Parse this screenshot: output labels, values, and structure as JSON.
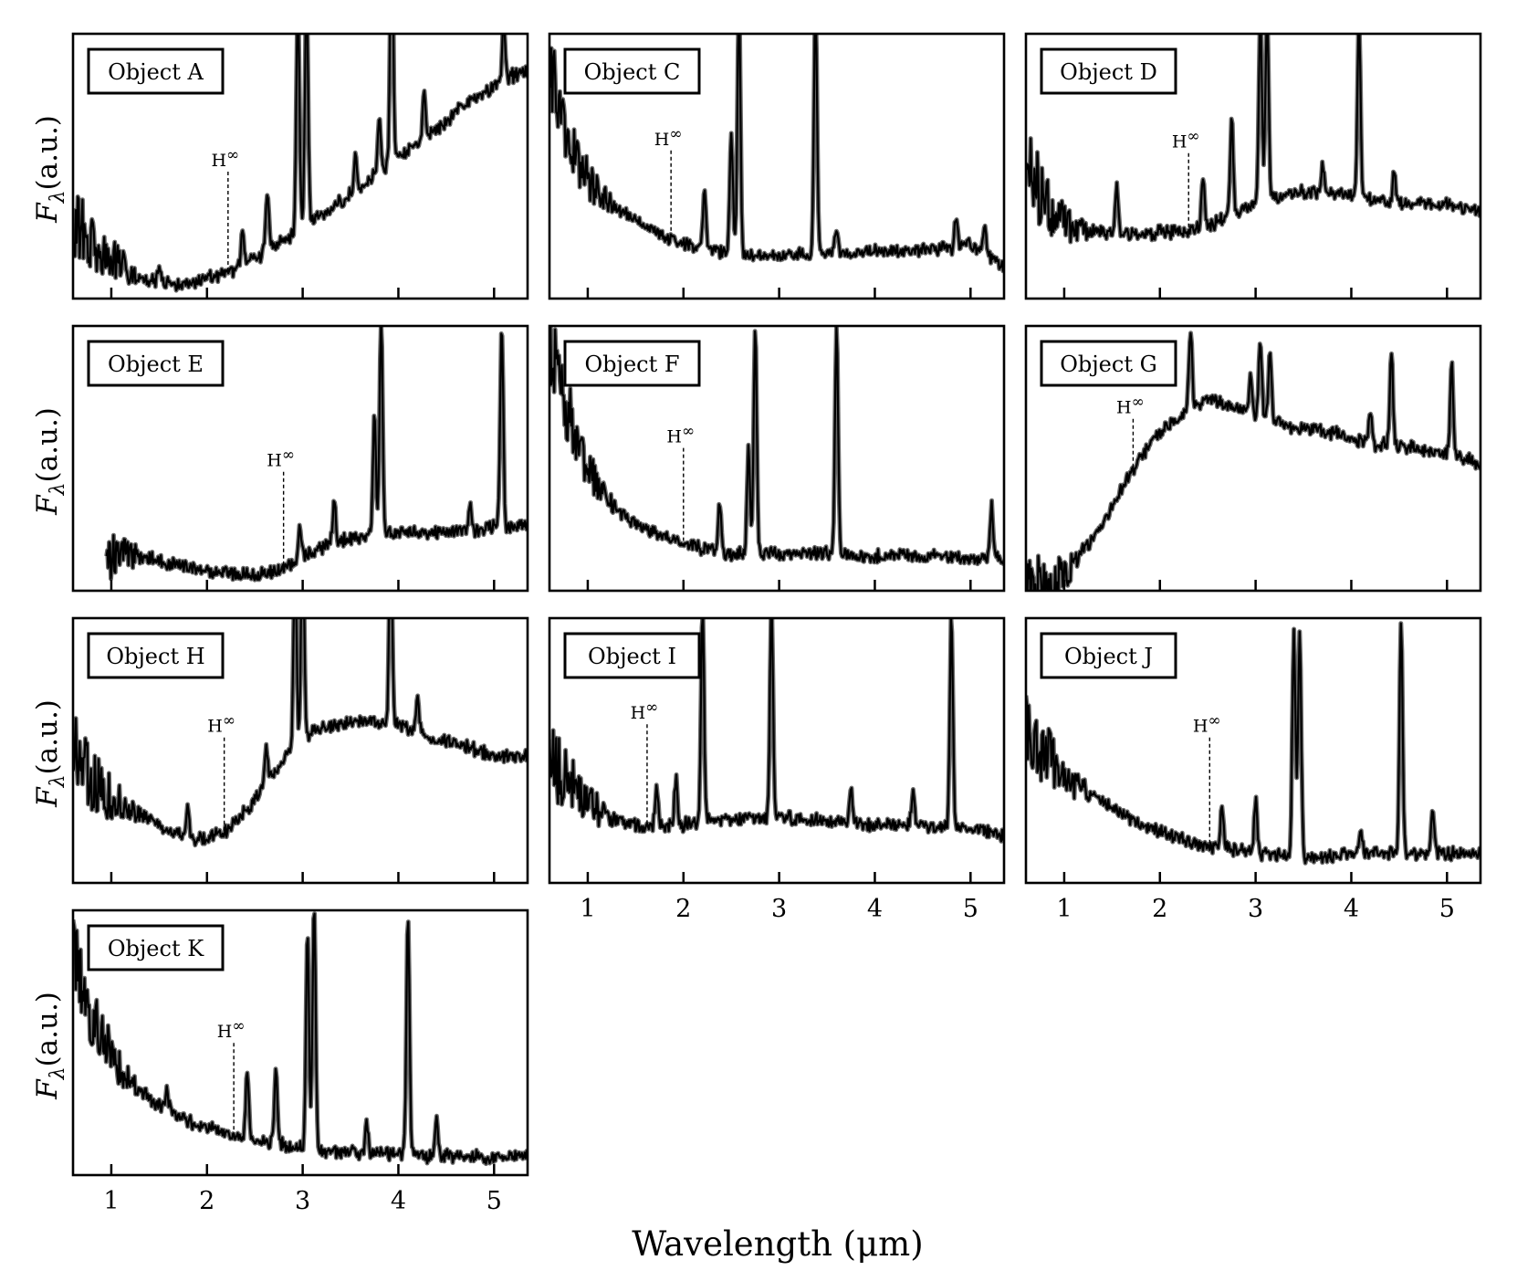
{
  "figure": {
    "xlabel": "Wavelength (μm)",
    "ylabel_main": "F",
    "ylabel_sub": "λ",
    "ylabel_unit": "(a.u.)",
    "hinf_main": "H",
    "hinf_sup": "∞"
  },
  "chart_data": [
    {
      "type": "line",
      "name": "Object A",
      "xlim": [
        0.6,
        5.35
      ],
      "ylim": [
        0,
        1
      ],
      "x_ticks": [
        1,
        2,
        3,
        4,
        5
      ],
      "x_tick_labels_shown": false,
      "hinf_x": 2.22,
      "hinf_y": 0.5,
      "y": [
        0.3,
        0.2,
        0.16,
        0.12,
        0.08,
        0.06,
        0.05,
        0.06,
        0.08,
        0.09,
        0.12,
        0.16,
        0.2,
        0.24,
        0.28,
        0.33,
        0.37,
        0.42,
        0.47,
        0.52,
        0.56,
        0.61,
        0.66,
        0.72,
        0.76,
        0.8,
        0.84,
        0.86
      ],
      "peaks": [
        {
          "x": 1.5,
          "h": 0.06
        },
        {
          "x": 2.37,
          "h": 0.14
        },
        {
          "x": 2.63,
          "h": 0.22
        },
        {
          "x": 2.95,
          "h": 0.9
        },
        {
          "x": 3.04,
          "h": 0.92
        },
        {
          "x": 3.55,
          "h": 0.12
        },
        {
          "x": 3.8,
          "h": 0.2
        },
        {
          "x": 3.93,
          "h": 0.92
        },
        {
          "x": 4.27,
          "h": 0.18
        },
        {
          "x": 5.1,
          "h": 0.22
        }
      ]
    },
    {
      "type": "line",
      "name": "Object C",
      "xlim": [
        0.6,
        5.35
      ],
      "ylim": [
        0,
        1
      ],
      "x_ticks": [
        1,
        2,
        3,
        4,
        5
      ],
      "x_tick_labels_shown": false,
      "hinf_x": 1.87,
      "hinf_y": 0.58,
      "y": [
        0.88,
        0.62,
        0.48,
        0.4,
        0.34,
        0.3,
        0.26,
        0.23,
        0.21,
        0.19,
        0.18,
        0.17,
        0.16,
        0.16,
        0.16,
        0.17,
        0.17,
        0.17,
        0.17,
        0.18,
        0.18,
        0.18,
        0.18,
        0.19,
        0.19,
        0.21,
        0.16,
        0.12
      ],
      "peaks": [
        {
          "x": 2.22,
          "h": 0.22
        },
        {
          "x": 2.5,
          "h": 0.45
        },
        {
          "x": 2.58,
          "h": 0.95
        },
        {
          "x": 3.38,
          "h": 0.95
        },
        {
          "x": 3.6,
          "h": 0.1
        },
        {
          "x": 4.85,
          "h": 0.12
        },
        {
          "x": 5.15,
          "h": 0.1
        }
      ]
    },
    {
      "type": "line",
      "name": "Object D",
      "xlim": [
        0.6,
        5.35
      ],
      "ylim": [
        0,
        1
      ],
      "x_ticks": [
        1,
        2,
        3,
        4,
        5
      ],
      "x_tick_labels_shown": false,
      "hinf_x": 2.3,
      "hinf_y": 0.57,
      "y": [
        0.52,
        0.38,
        0.3,
        0.27,
        0.26,
        0.25,
        0.24,
        0.24,
        0.25,
        0.25,
        0.26,
        0.28,
        0.31,
        0.34,
        0.37,
        0.39,
        0.4,
        0.4,
        0.4,
        0.39,
        0.38,
        0.37,
        0.36,
        0.36,
        0.36,
        0.35,
        0.34,
        0.33
      ],
      "peaks": [
        {
          "x": 1.55,
          "h": 0.18
        },
        {
          "x": 2.45,
          "h": 0.18
        },
        {
          "x": 2.75,
          "h": 0.35
        },
        {
          "x": 3.05,
          "h": 0.7
        },
        {
          "x": 3.12,
          "h": 0.72
        },
        {
          "x": 3.7,
          "h": 0.1
        },
        {
          "x": 4.08,
          "h": 0.68
        },
        {
          "x": 4.45,
          "h": 0.12
        }
      ]
    },
    {
      "type": "line",
      "name": "Object E",
      "xlim": [
        0.6,
        5.35
      ],
      "ylim": [
        0,
        1
      ],
      "x_ticks": [
        1,
        2,
        3,
        4,
        5
      ],
      "x_tick_labels_shown": false,
      "hinf_x": 2.8,
      "hinf_y": 0.47,
      "start_x": 0.95,
      "y": [
        0.13,
        0.13,
        0.13,
        0.14,
        0.13,
        0.12,
        0.1,
        0.09,
        0.08,
        0.07,
        0.06,
        0.06,
        0.07,
        0.1,
        0.14,
        0.17,
        0.19,
        0.2,
        0.21,
        0.22,
        0.22,
        0.22,
        0.22,
        0.23,
        0.23,
        0.24,
        0.24,
        0.25
      ],
      "peaks": [
        {
          "x": 2.97,
          "h": 0.12
        },
        {
          "x": 3.33,
          "h": 0.15
        },
        {
          "x": 3.75,
          "h": 0.45
        },
        {
          "x": 3.82,
          "h": 0.8
        },
        {
          "x": 4.75,
          "h": 0.1
        },
        {
          "x": 5.08,
          "h": 0.75
        }
      ]
    },
    {
      "type": "line",
      "name": "Object F",
      "xlim": [
        0.6,
        5.35
      ],
      "ylim": [
        0,
        1
      ],
      "x_ticks": [
        1,
        2,
        3,
        4,
        5
      ],
      "x_tick_labels_shown": false,
      "hinf_x": 2.0,
      "hinf_y": 0.56,
      "y": [
        0.95,
        0.7,
        0.5,
        0.38,
        0.3,
        0.26,
        0.22,
        0.2,
        0.18,
        0.16,
        0.15,
        0.14,
        0.14,
        0.14,
        0.14,
        0.14,
        0.14,
        0.14,
        0.13,
        0.13,
        0.13,
        0.13,
        0.13,
        0.13,
        0.13,
        0.12,
        0.12,
        0.12
      ],
      "peaks": [
        {
          "x": 2.38,
          "h": 0.18
        },
        {
          "x": 2.68,
          "h": 0.4
        },
        {
          "x": 2.75,
          "h": 0.86
        },
        {
          "x": 3.6,
          "h": 0.86
        },
        {
          "x": 5.22,
          "h": 0.2
        }
      ]
    },
    {
      "type": "line",
      "name": "Object G",
      "xlim": [
        0.6,
        5.35
      ],
      "ylim": [
        0,
        1
      ],
      "x_ticks": [
        1,
        2,
        3,
        4,
        5
      ],
      "x_tick_labels_shown": false,
      "hinf_x": 1.72,
      "hinf_y": 0.67,
      "y": [
        0.02,
        0.02,
        0.05,
        0.12,
        0.2,
        0.3,
        0.42,
        0.52,
        0.6,
        0.65,
        0.7,
        0.72,
        0.7,
        0.68,
        0.65,
        0.63,
        0.62,
        0.61,
        0.6,
        0.58,
        0.56,
        0.55,
        0.55,
        0.54,
        0.53,
        0.52,
        0.5,
        0.48
      ],
      "peaks": [
        {
          "x": 2.32,
          "h": 0.3
        },
        {
          "x": 2.95,
          "h": 0.15
        },
        {
          "x": 3.05,
          "h": 0.3
        },
        {
          "x": 3.15,
          "h": 0.25
        },
        {
          "x": 4.2,
          "h": 0.12
        },
        {
          "x": 4.42,
          "h": 0.35
        },
        {
          "x": 5.05,
          "h": 0.35
        }
      ]
    },
    {
      "type": "line",
      "name": "Object H",
      "xlim": [
        0.6,
        5.35
      ],
      "ylim": [
        0,
        1
      ],
      "x_ticks": [
        1,
        2,
        3,
        4,
        5
      ],
      "x_tick_labels_shown": false,
      "hinf_x": 2.18,
      "hinf_y": 0.57,
      "y": [
        0.5,
        0.4,
        0.34,
        0.3,
        0.26,
        0.22,
        0.19,
        0.17,
        0.17,
        0.19,
        0.25,
        0.33,
        0.42,
        0.5,
        0.56,
        0.59,
        0.6,
        0.61,
        0.6,
        0.6,
        0.58,
        0.56,
        0.54,
        0.52,
        0.5,
        0.48,
        0.48,
        0.48
      ],
      "peaks": [
        {
          "x": 1.8,
          "h": 0.12
        },
        {
          "x": 2.62,
          "h": 0.15
        },
        {
          "x": 2.92,
          "h": 0.7
        },
        {
          "x": 3.0,
          "h": 0.8
        },
        {
          "x": 3.92,
          "h": 0.75
        },
        {
          "x": 4.2,
          "h": 0.12
        }
      ]
    },
    {
      "type": "line",
      "name": "Object I",
      "xlim": [
        0.6,
        5.35
      ],
      "ylim": [
        0,
        1
      ],
      "x_ticks": [
        1,
        2,
        3,
        4,
        5
      ],
      "x_tick_labels_shown": true,
      "hinf_x": 1.62,
      "hinf_y": 0.62,
      "y": [
        0.48,
        0.38,
        0.32,
        0.28,
        0.24,
        0.22,
        0.21,
        0.21,
        0.22,
        0.23,
        0.24,
        0.24,
        0.25,
        0.25,
        0.25,
        0.24,
        0.24,
        0.23,
        0.23,
        0.22,
        0.22,
        0.22,
        0.22,
        0.21,
        0.21,
        0.2,
        0.19,
        0.18
      ],
      "peaks": [
        {
          "x": 1.72,
          "h": 0.15
        },
        {
          "x": 1.92,
          "h": 0.18
        },
        {
          "x": 2.2,
          "h": 0.8
        },
        {
          "x": 2.92,
          "h": 0.8
        },
        {
          "x": 3.75,
          "h": 0.12
        },
        {
          "x": 4.4,
          "h": 0.12
        },
        {
          "x": 4.8,
          "h": 0.8
        }
      ]
    },
    {
      "type": "line",
      "name": "Object J",
      "xlim": [
        0.6,
        5.35
      ],
      "ylim": [
        0,
        1
      ],
      "x_ticks": [
        1,
        2,
        3,
        4,
        5
      ],
      "x_tick_labels_shown": true,
      "hinf_x": 2.52,
      "hinf_y": 0.57,
      "y": [
        0.62,
        0.5,
        0.43,
        0.38,
        0.33,
        0.29,
        0.25,
        0.22,
        0.19,
        0.17,
        0.15,
        0.14,
        0.13,
        0.12,
        0.11,
        0.11,
        0.1,
        0.1,
        0.1,
        0.11,
        0.11,
        0.11,
        0.11,
        0.11,
        0.11,
        0.11,
        0.11,
        0.11
      ],
      "peaks": [
        {
          "x": 2.65,
          "h": 0.15
        },
        {
          "x": 3.0,
          "h": 0.2
        },
        {
          "x": 3.4,
          "h": 0.85
        },
        {
          "x": 3.46,
          "h": 0.85
        },
        {
          "x": 4.1,
          "h": 0.1
        },
        {
          "x": 4.52,
          "h": 0.88
        },
        {
          "x": 4.85,
          "h": 0.15
        }
      ]
    },
    {
      "type": "line",
      "name": "Object K",
      "xlim": [
        0.6,
        5.35
      ],
      "ylim": [
        0,
        1
      ],
      "x_ticks": [
        1,
        2,
        3,
        4,
        5
      ],
      "x_tick_labels_shown": true,
      "hinf_x": 2.28,
      "hinf_y": 0.52,
      "y": [
        0.85,
        0.62,
        0.48,
        0.38,
        0.32,
        0.27,
        0.23,
        0.2,
        0.18,
        0.16,
        0.14,
        0.13,
        0.12,
        0.11,
        0.1,
        0.09,
        0.09,
        0.08,
        0.08,
        0.08,
        0.08,
        0.07,
        0.07,
        0.07,
        0.07,
        0.07,
        0.07,
        0.07
      ],
      "peaks": [
        {
          "x": 1.58,
          "h": 0.08
        },
        {
          "x": 2.42,
          "h": 0.25
        },
        {
          "x": 2.72,
          "h": 0.3
        },
        {
          "x": 3.05,
          "h": 0.8
        },
        {
          "x": 3.12,
          "h": 0.92
        },
        {
          "x": 3.67,
          "h": 0.12
        },
        {
          "x": 4.1,
          "h": 0.9
        },
        {
          "x": 4.4,
          "h": 0.15
        }
      ]
    }
  ]
}
